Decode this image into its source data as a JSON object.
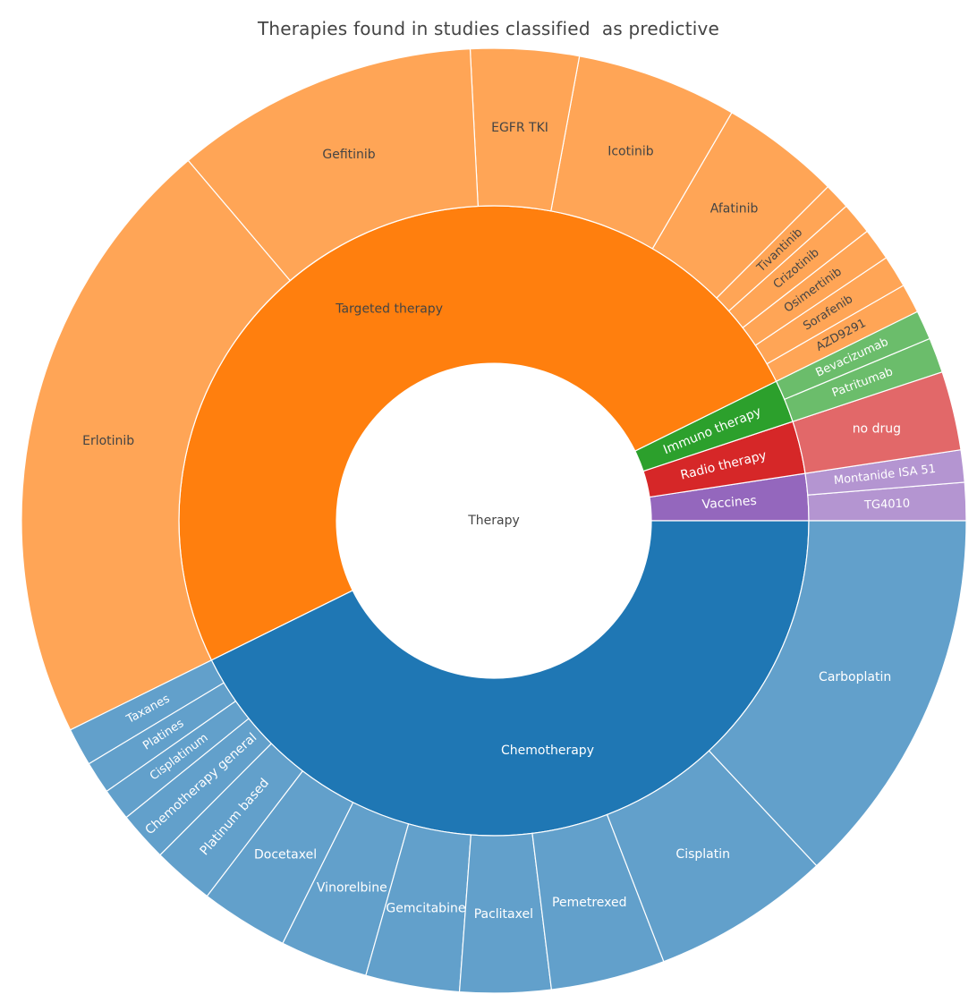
{
  "chart_data": {
    "type": "sunburst",
    "title": "Therapies found in studies classified  as predictive",
    "root": {
      "label": "Therapy",
      "value": 100,
      "children": [
        {
          "label": "Vaccines",
          "value": 2.4,
          "color": "#9467bd",
          "children": [
            {
              "label": "TG4010",
              "value": 1.3
            },
            {
              "label": "Montanide ISA 51",
              "value": 1.1
            }
          ]
        },
        {
          "label": "Radio therapy",
          "value": 2.7,
          "color": "#d62728",
          "children": [
            {
              "label": "no drug",
              "value": 2.7
            }
          ]
        },
        {
          "label": "Immuno therapy",
          "value": 2.2,
          "color": "#2ca02c",
          "children": [
            {
              "label": "Patritumab",
              "value": 1.2
            },
            {
              "label": "Bevacizumab",
              "value": 1.0
            }
          ]
        },
        {
          "label": "Targeted therapy",
          "value": 50.0,
          "color": "#ff7f0e",
          "children": [
            {
              "label": "AZD9291",
              "value": 1.0
            },
            {
              "label": "Sorafenib",
              "value": 1.1
            },
            {
              "label": "Osimertinib",
              "value": 1.1
            },
            {
              "label": "Crizotinib",
              "value": 1.1
            },
            {
              "label": "Tivantinib",
              "value": 0.9
            },
            {
              "label": "Afatinib",
              "value": 4.1
            },
            {
              "label": "Icotinib",
              "value": 5.5
            },
            {
              "label": "EGFR TKI",
              "value": 3.7
            },
            {
              "label": "Gefitinib",
              "value": 10.4
            },
            {
              "label": "Erlotinib",
              "value": 21.1
            }
          ]
        },
        {
          "label": "Chemotherapy",
          "value": 42.7,
          "color": "#1f77b4",
          "children": [
            {
              "label": "Taxanes",
              "value": 1.3
            },
            {
              "label": "Platines",
              "value": 1.1
            },
            {
              "label": "Cisplatinum",
              "value": 1.1
            },
            {
              "label": "Chemotherapy general",
              "value": 1.7
            },
            {
              "label": "Platinum based",
              "value": 2.1
            },
            {
              "label": "Docetaxel",
              "value": 3.0
            },
            {
              "label": "Vinorelbine",
              "value": 3.0
            },
            {
              "label": "Gemcitabine",
              "value": 3.2
            },
            {
              "label": "Paclitaxel",
              "value": 3.1
            },
            {
              "label": "Pemetrexed",
              "value": 3.9
            },
            {
              "label": "Cisplatin",
              "value": 6.1
            },
            {
              "label": "Carboplatin",
              "value": 13.0
            }
          ]
        }
      ]
    }
  }
}
